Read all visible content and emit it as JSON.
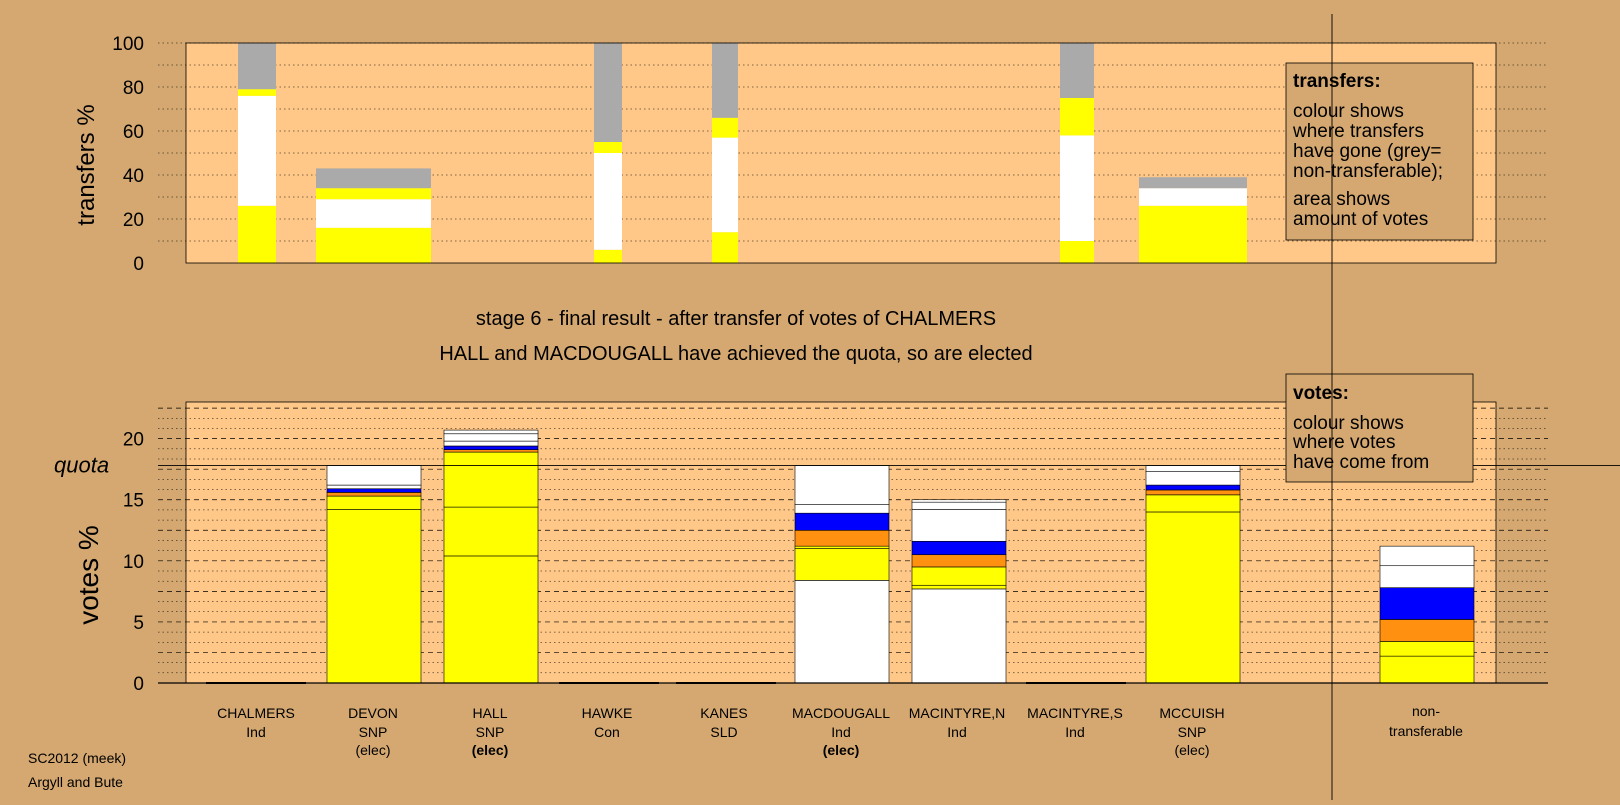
{
  "chart_data": [
    {
      "type": "bar",
      "stacked": true,
      "ylabel": "transfers %",
      "ylim": [
        0,
        100
      ],
      "yticks": [
        0,
        20,
        40,
        60,
        80,
        100
      ],
      "grid": "dotted every 10",
      "legend_box": {
        "title": "transfers:",
        "lines_1": [
          "colour shows",
          "where transfers",
          "have gone (grey=",
          "non-transferable);"
        ],
        "lines_2": [
          "area shows",
          "amount of votes"
        ]
      },
      "bars": [
        {
          "candidate": "CHALMERS",
          "segments": [
            {
              "color": "#ffff00",
              "from": 0,
              "to": 26
            },
            {
              "color": "#ffffff",
              "from": 26,
              "to": 76
            },
            {
              "color": "#ffff00",
              "from": 76,
              "to": 79
            },
            {
              "color": "#aaaaaa",
              "from": 79,
              "to": 100
            }
          ]
        },
        {
          "candidate": "DEVON",
          "segments": [
            {
              "color": "#ffff00",
              "from": 0,
              "to": 16
            },
            {
              "color": "#ffffff",
              "from": 16,
              "to": 29
            },
            {
              "color": "#ffff00",
              "from": 29,
              "to": 34
            },
            {
              "color": "#aaaaaa",
              "from": 34,
              "to": 43
            }
          ]
        },
        {
          "candidate": "HAWKE",
          "segments": [
            {
              "color": "#ffff00",
              "from": 0,
              "to": 6
            },
            {
              "color": "#ffffff",
              "from": 6,
              "to": 50
            },
            {
              "color": "#ffff00",
              "from": 50,
              "to": 55
            },
            {
              "color": "#aaaaaa",
              "from": 55,
              "to": 100
            }
          ]
        },
        {
          "candidate": "KANES",
          "segments": [
            {
              "color": "#ffff00",
              "from": 0,
              "to": 14
            },
            {
              "color": "#ffffff",
              "from": 14,
              "to": 57
            },
            {
              "color": "#ffff00",
              "from": 57,
              "to": 66
            },
            {
              "color": "#aaaaaa",
              "from": 66,
              "to": 100
            }
          ]
        },
        {
          "candidate": "MACINTYRE,S",
          "segments": [
            {
              "color": "#ffff00",
              "from": 0,
              "to": 10
            },
            {
              "color": "#ffffff",
              "from": 10,
              "to": 58
            },
            {
              "color": "#ffff00",
              "from": 58,
              "to": 75
            },
            {
              "color": "#aaaaaa",
              "from": 75,
              "to": 100
            }
          ]
        },
        {
          "candidate": "MCCUISH",
          "segments": [
            {
              "color": "#ffff00",
              "from": 0,
              "to": 26
            },
            {
              "color": "#ffffff",
              "from": 26,
              "to": 34
            },
            {
              "color": "#aaaaaa",
              "from": 34,
              "to": 39
            }
          ]
        }
      ]
    },
    {
      "type": "bar",
      "stacked": true,
      "ylabel": "votes %",
      "ylim": [
        0,
        23
      ],
      "yticks": [
        0,
        5,
        10,
        15,
        20
      ],
      "quota_label": "quota",
      "quota_value": 17.8,
      "grid": "dashed every 2.5, dotted every 0.833",
      "legend_box": {
        "title": "votes:",
        "lines_1": [
          "colour shows",
          "where votes",
          "have come from"
        ]
      },
      "categories": [
        {
          "name": "CHALMERS",
          "party": "Ind",
          "status": ""
        },
        {
          "name": "DEVON",
          "party": "SNP",
          "status": "(elec)"
        },
        {
          "name": "HALL",
          "party": "SNP",
          "status": "(elec)",
          "status_bold": true
        },
        {
          "name": "HAWKE",
          "party": "Con",
          "status": ""
        },
        {
          "name": "KANES",
          "party": "SLD",
          "status": ""
        },
        {
          "name": "MACDOUGALL",
          "party": "Ind",
          "status": "(elec)",
          "status_bold": true
        },
        {
          "name": "MACINTYRE,N",
          "party": "Ind",
          "status": ""
        },
        {
          "name": "MACINTYRE,S",
          "party": "Ind",
          "status": ""
        },
        {
          "name": "MCCUISH",
          "party": "SNP",
          "status": "(elec)"
        }
      ],
      "bars": [
        {
          "candidate": "CHALMERS",
          "segments": []
        },
        {
          "candidate": "DEVON",
          "segments": [
            {
              "color": "#ffff00",
              "from": 0,
              "to": 14.2
            },
            {
              "color": "#ffff00",
              "from": 14.2,
              "to": 15.3
            },
            {
              "color": "#ff9010",
              "from": 15.3,
              "to": 15.6
            },
            {
              "color": "#0000ff",
              "from": 15.6,
              "to": 15.9
            },
            {
              "color": "#ffffff",
              "from": 15.9,
              "to": 16.2
            },
            {
              "color": "#ffffff",
              "from": 16.2,
              "to": 17.8
            }
          ]
        },
        {
          "candidate": "HALL",
          "segments": [
            {
              "color": "#ffff00",
              "from": 0,
              "to": 10.4
            },
            {
              "color": "#ffff00",
              "from": 10.4,
              "to": 14.4
            },
            {
              "color": "#ffff00",
              "from": 14.4,
              "to": 18.9
            },
            {
              "color": "#ff9010",
              "from": 18.9,
              "to": 19.1
            },
            {
              "color": "#0000ff",
              "from": 19.1,
              "to": 19.4
            },
            {
              "color": "#ffffff",
              "from": 19.4,
              "to": 19.8
            },
            {
              "color": "#ffffff",
              "from": 19.8,
              "to": 20.4
            },
            {
              "color": "#ffffff",
              "from": 20.4,
              "to": 20.7
            }
          ]
        },
        {
          "candidate": "HAWKE",
          "segments": []
        },
        {
          "candidate": "KANES",
          "segments": []
        },
        {
          "candidate": "MACDOUGALL",
          "segments": [
            {
              "color": "#ffffff",
              "from": 0,
              "to": 8.4
            },
            {
              "color": "#ffff00",
              "from": 8.4,
              "to": 11.0
            },
            {
              "color": "#ffff00",
              "from": 11.0,
              "to": 11.2
            },
            {
              "color": "#ff9010",
              "from": 11.2,
              "to": 12.5
            },
            {
              "color": "#0000ff",
              "from": 12.5,
              "to": 13.9
            },
            {
              "color": "#ffffff",
              "from": 13.9,
              "to": 14.6
            },
            {
              "color": "#ffffff",
              "from": 14.6,
              "to": 17.8
            }
          ]
        },
        {
          "candidate": "MACINTYRE,N",
          "segments": [
            {
              "color": "#ffffff",
              "from": 0,
              "to": 7.7
            },
            {
              "color": "#ffff00",
              "from": 7.7,
              "to": 8.0
            },
            {
              "color": "#ffff00",
              "from": 8.0,
              "to": 9.5
            },
            {
              "color": "#ff9010",
              "from": 9.5,
              "to": 10.5
            },
            {
              "color": "#0000ff",
              "from": 10.5,
              "to": 11.6
            },
            {
              "color": "#ffffff",
              "from": 11.6,
              "to": 14.2
            },
            {
              "color": "#ffffff",
              "from": 14.2,
              "to": 14.8
            },
            {
              "color": "#ffffff",
              "from": 14.8,
              "to": 15.0
            }
          ]
        },
        {
          "candidate": "MACINTYRE,S",
          "segments": []
        },
        {
          "candidate": "MCCUISH",
          "segments": [
            {
              "color": "#ffff00",
              "from": 0,
              "to": 14.0
            },
            {
              "color": "#ffff00",
              "from": 14.0,
              "to": 15.4
            },
            {
              "color": "#ff9010",
              "from": 15.4,
              "to": 15.8
            },
            {
              "color": "#0000ff",
              "from": 15.8,
              "to": 16.2
            },
            {
              "color": "#ffffff",
              "from": 16.2,
              "to": 17.3
            },
            {
              "color": "#ffffff",
              "from": 17.3,
              "to": 17.8
            }
          ]
        }
      ],
      "nontransferable": {
        "label_line1": "non-",
        "label_line2": "transferable",
        "segments": [
          {
            "color": "#ffff00",
            "from": 0,
            "to": 2.2
          },
          {
            "color": "#ffff00",
            "from": 2.2,
            "to": 3.4
          },
          {
            "color": "#ff9010",
            "from": 3.4,
            "to": 5.2
          },
          {
            "color": "#0000ff",
            "from": 5.2,
            "to": 7.8
          },
          {
            "color": "#ffffff",
            "from": 7.8,
            "to": 9.6
          },
          {
            "color": "#ffffff",
            "from": 9.6,
            "to": 11.2
          }
        ]
      }
    }
  ],
  "stage_title": "stage 6 - final result - after transfer of votes of CHALMERS",
  "stage_subtitle": "HALL and MACDOUGALL have achieved the quota, so are elected",
  "footer": {
    "line1": "SC2012 (meek)",
    "line2": "Argyll and Bute"
  },
  "colors": {
    "background": "#d4a870",
    "plot_area": "#ffc888",
    "legend_box": "#d4a870",
    "yellow": "#ffff00",
    "white": "#ffffff",
    "orange": "#ff9010",
    "blue": "#0000ff",
    "grey": "#aaaaaa"
  }
}
